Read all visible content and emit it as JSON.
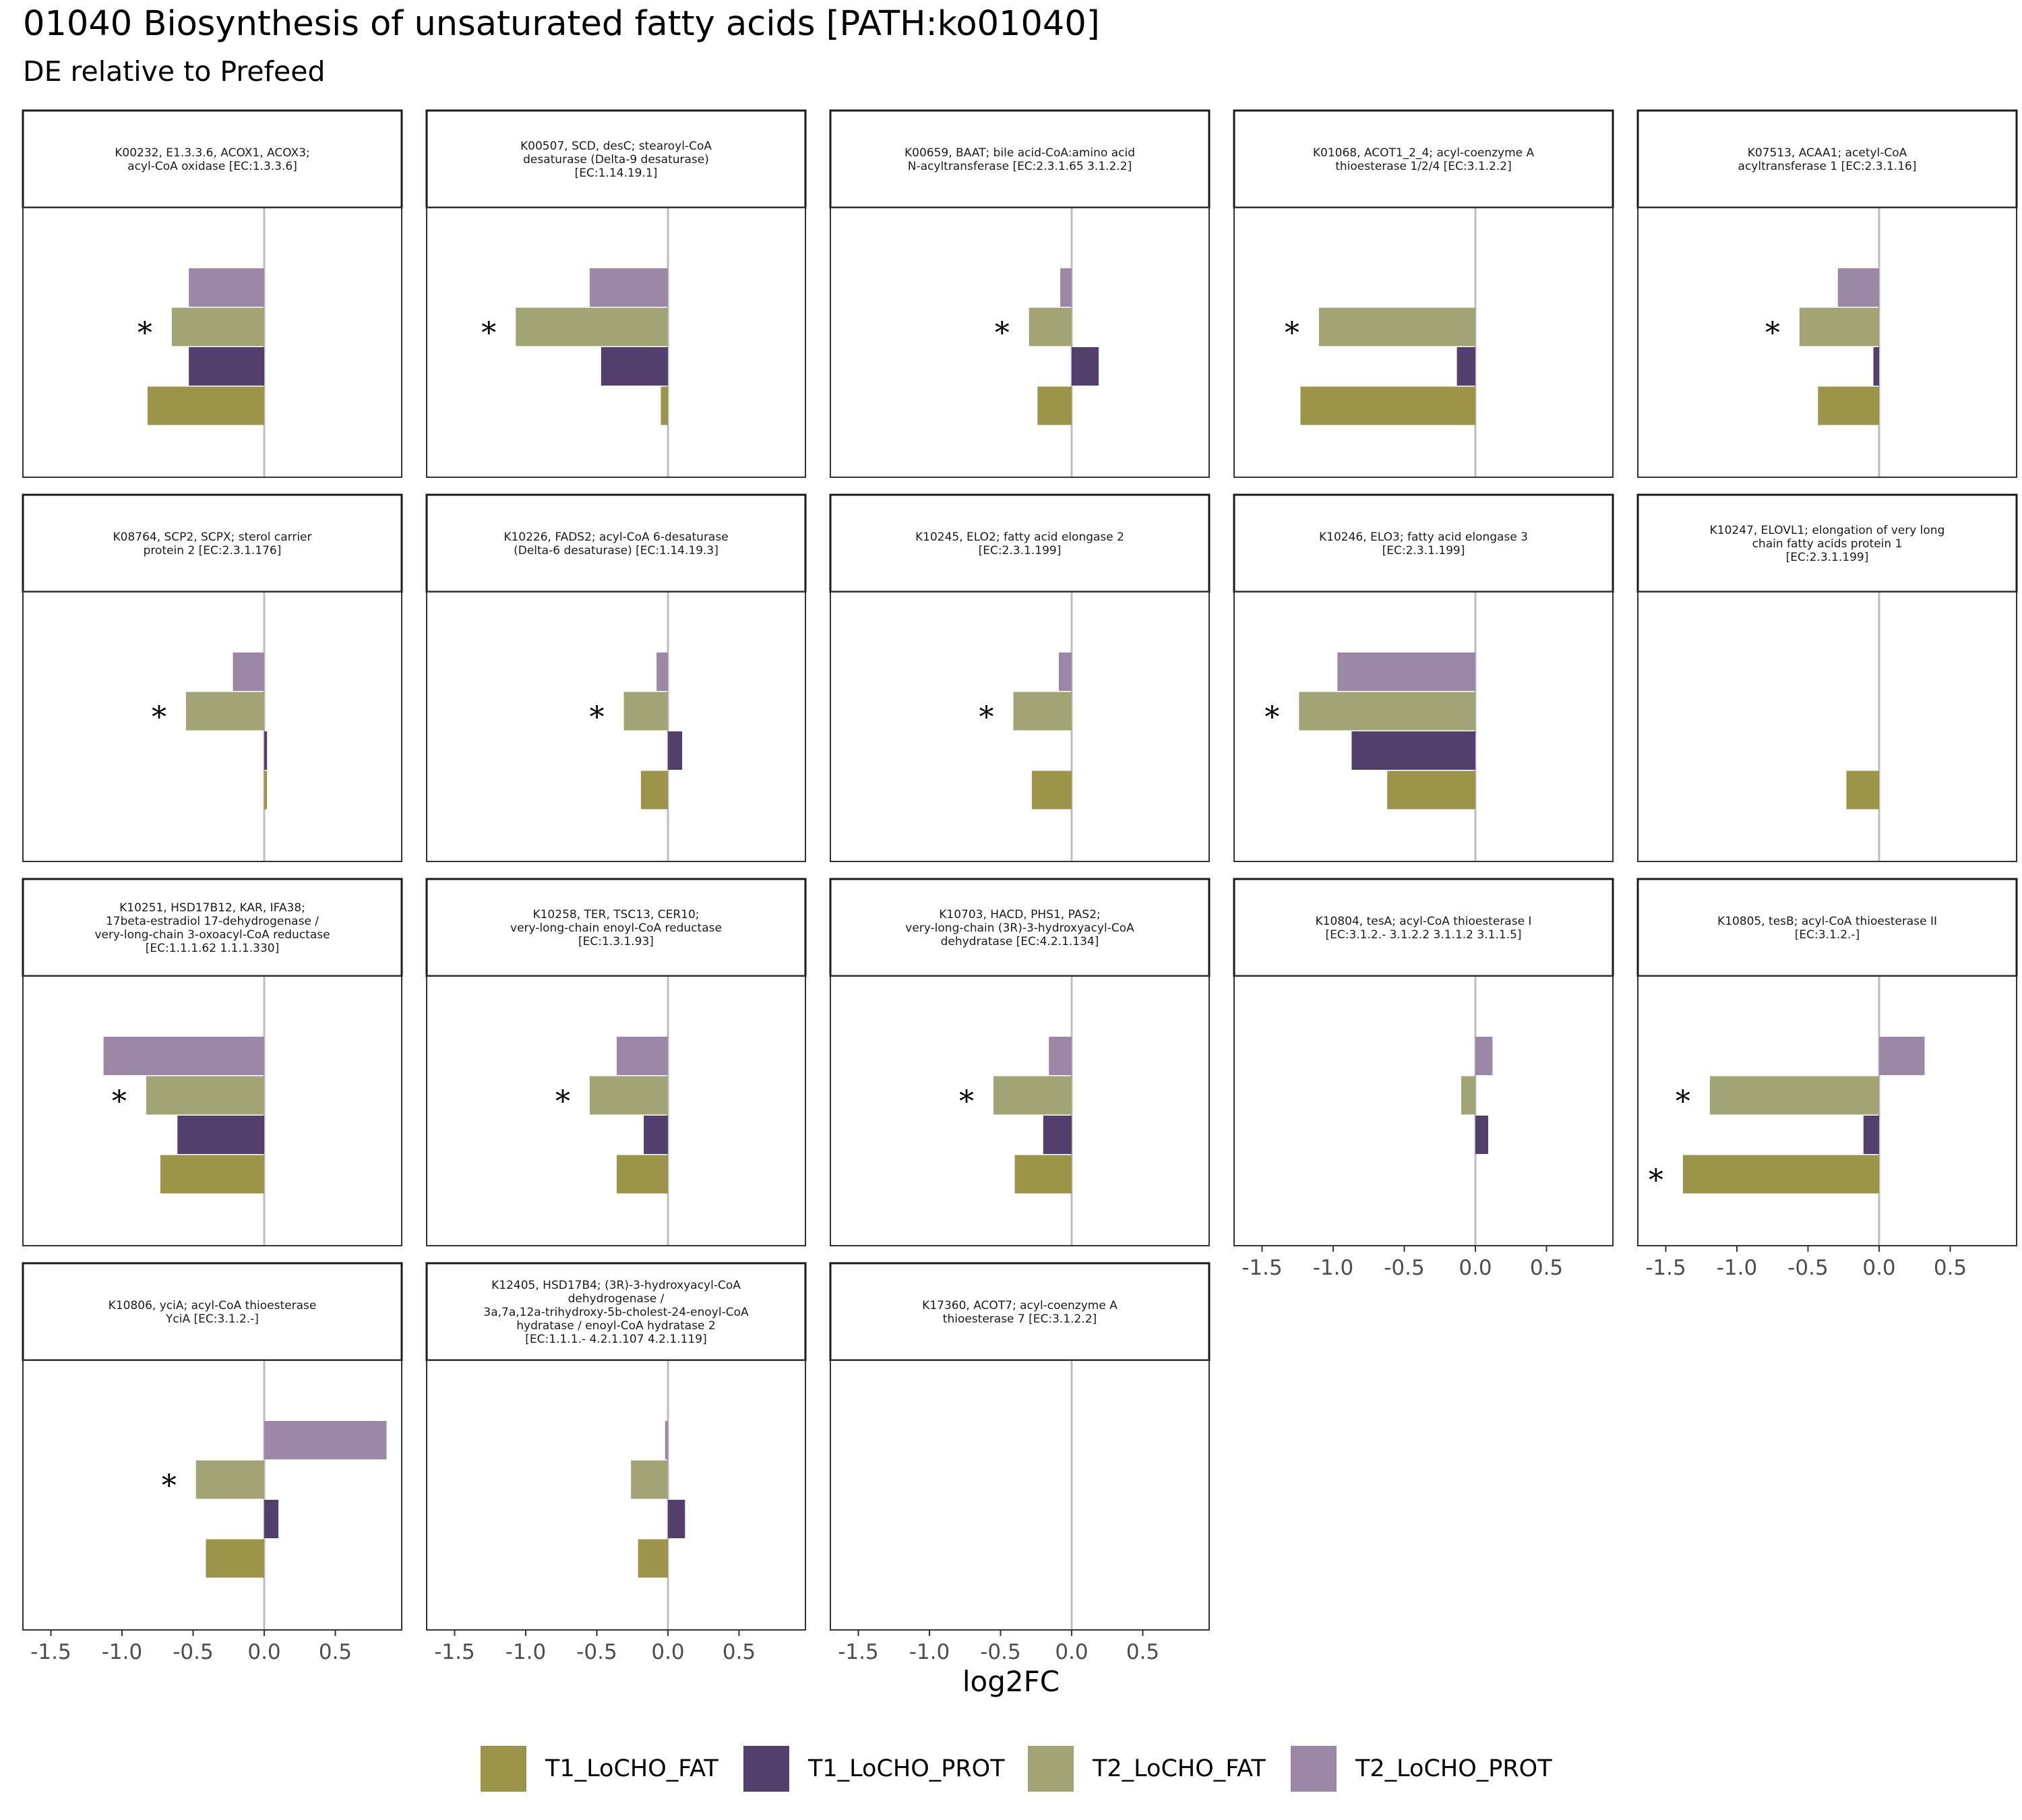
{
  "title": "01040 Biosynthesis of unsaturated fatty acids [PATH:ko01040]",
  "subtitle": "DE relative to Prefeed",
  "chart_data": {
    "type": "bar",
    "orientation": "horizontal",
    "xlabel": "log2FC",
    "xlim": [
      -1.7,
      0.95
    ],
    "x_ticks": [
      -1.5,
      -1.0,
      -0.5,
      0.0,
      0.5
    ],
    "x_tick_labels": [
      "-1.5",
      "-1.0",
      "-0.5",
      "0.0",
      "0.5"
    ],
    "series_order_top_to_bottom": [
      "T2_LoCHO_PROT",
      "T2_LoCHO_FAT",
      "T1_LoCHO_PROT",
      "T1_LoCHO_FAT"
    ],
    "colors": {
      "T1_LoCHO_FAT": "#9c9549",
      "T1_LoCHO_PROT": "#523f6b",
      "T2_LoCHO_FAT": "#a3a476",
      "T2_LoCHO_PROT": "#9b88a6"
    },
    "significance_marker": "*",
    "legend_position": "bottom",
    "panels": [
      {
        "label": [
          "K00232, E1.3.3.6, ACOX1, ACOX3;",
          "acyl-CoA oxidase [EC:1.3.3.6]"
        ],
        "values": {
          "T2_LoCHO_PROT": -0.53,
          "T2_LoCHO_FAT": -0.65,
          "T1_LoCHO_PROT": -0.53,
          "T1_LoCHO_FAT": -0.82
        },
        "significant": [
          "T2_LoCHO_FAT"
        ]
      },
      {
        "label": [
          "K00507, SCD, desC; stearoyl-CoA",
          "desaturase (Delta-9 desaturase)",
          "[EC:1.14.19.1]"
        ],
        "values": {
          "T2_LoCHO_PROT": -0.55,
          "T2_LoCHO_FAT": -1.07,
          "T1_LoCHO_PROT": -0.47,
          "T1_LoCHO_FAT": -0.05
        },
        "significant": [
          "T2_LoCHO_FAT"
        ]
      },
      {
        "label": [
          "K00659, BAAT; bile acid-CoA:amino acid",
          "N-acyltransferase [EC:2.3.1.65 3.1.2.2]"
        ],
        "values": {
          "T2_LoCHO_PROT": -0.08,
          "T2_LoCHO_FAT": -0.3,
          "T1_LoCHO_PROT": 0.19,
          "T1_LoCHO_FAT": -0.24
        },
        "significant": [
          "T2_LoCHO_FAT"
        ]
      },
      {
        "label": [
          "K01068, ACOT1_2_4; acyl-coenzyme A",
          "thioesterase 1/2/4 [EC:3.1.2.2]"
        ],
        "values": {
          "T2_LoCHO_PROT": 0.0,
          "T2_LoCHO_FAT": -1.1,
          "T1_LoCHO_PROT": -0.13,
          "T1_LoCHO_FAT": -1.23
        },
        "significant": [
          "T2_LoCHO_FAT"
        ]
      },
      {
        "label": [
          "K07513, ACAA1; acetyl-CoA",
          "acyltransferase 1 [EC:2.3.1.16]"
        ],
        "values": {
          "T2_LoCHO_PROT": -0.29,
          "T2_LoCHO_FAT": -0.56,
          "T1_LoCHO_PROT": -0.04,
          "T1_LoCHO_FAT": -0.43
        },
        "significant": [
          "T2_LoCHO_FAT"
        ]
      },
      {
        "label": [
          "K08764, SCP2, SCPX; sterol carrier",
          "protein 2 [EC:2.3.1.176]"
        ],
        "values": {
          "T2_LoCHO_PROT": -0.22,
          "T2_LoCHO_FAT": -0.55,
          "T1_LoCHO_PROT": 0.02,
          "T1_LoCHO_FAT": 0.02
        },
        "significant": [
          "T2_LoCHO_FAT"
        ]
      },
      {
        "label": [
          "K10226, FADS2; acyl-CoA 6-desaturase",
          "(Delta-6 desaturase) [EC:1.14.19.3]"
        ],
        "values": {
          "T2_LoCHO_PROT": -0.08,
          "T2_LoCHO_FAT": -0.31,
          "T1_LoCHO_PROT": 0.1,
          "T1_LoCHO_FAT": -0.19
        },
        "significant": [
          "T2_LoCHO_FAT"
        ]
      },
      {
        "label": [
          "K10245, ELO2; fatty acid elongase 2",
          "[EC:2.3.1.199]"
        ],
        "values": {
          "T2_LoCHO_PROT": -0.09,
          "T2_LoCHO_FAT": -0.41,
          "T1_LoCHO_PROT": 0.0,
          "T1_LoCHO_FAT": -0.28
        },
        "significant": [
          "T2_LoCHO_FAT"
        ]
      },
      {
        "label": [
          "K10246, ELO3; fatty acid elongase 3",
          "[EC:2.3.1.199]"
        ],
        "values": {
          "T2_LoCHO_PROT": -0.97,
          "T2_LoCHO_FAT": -1.24,
          "T1_LoCHO_PROT": -0.87,
          "T1_LoCHO_FAT": -0.62
        },
        "significant": [
          "T2_LoCHO_FAT"
        ]
      },
      {
        "label": [
          "K10247, ELOVL1; elongation of very long",
          "chain fatty acids protein 1",
          "[EC:2.3.1.199]"
        ],
        "values": {
          "T2_LoCHO_PROT": 0.0,
          "T2_LoCHO_FAT": 0.0,
          "T1_LoCHO_PROT": 0.0,
          "T1_LoCHO_FAT": -0.23
        },
        "significant": []
      },
      {
        "label": [
          "K10251, HSD17B12, KAR, IFA38;",
          "17beta-estradiol 17-dehydrogenase /",
          "very-long-chain 3-oxoacyl-CoA reductase",
          "[EC:1.1.1.62 1.1.1.330]"
        ],
        "values": {
          "T2_LoCHO_PROT": -1.13,
          "T2_LoCHO_FAT": -0.83,
          "T1_LoCHO_PROT": -0.61,
          "T1_LoCHO_FAT": -0.73
        },
        "significant": [
          "T2_LoCHO_FAT"
        ]
      },
      {
        "label": [
          "K10258, TER, TSC13, CER10;",
          "very-long-chain enoyl-CoA reductase",
          "[EC:1.3.1.93]"
        ],
        "values": {
          "T2_LoCHO_PROT": -0.36,
          "T2_LoCHO_FAT": -0.55,
          "T1_LoCHO_PROT": -0.17,
          "T1_LoCHO_FAT": -0.36
        },
        "significant": [
          "T2_LoCHO_FAT"
        ]
      },
      {
        "label": [
          "K10703, HACD, PHS1, PAS2;",
          "very-long-chain (3R)-3-hydroxyacyl-CoA",
          "dehydratase [EC:4.2.1.134]"
        ],
        "values": {
          "T2_LoCHO_PROT": -0.16,
          "T2_LoCHO_FAT": -0.55,
          "T1_LoCHO_PROT": -0.2,
          "T1_LoCHO_FAT": -0.4
        },
        "significant": [
          "T2_LoCHO_FAT"
        ]
      },
      {
        "label": [
          "K10804, tesA; acyl-CoA thioesterase I",
          "[EC:3.1.2.- 3.1.2.2 3.1.1.2 3.1.1.5]"
        ],
        "values": {
          "T2_LoCHO_PROT": 0.12,
          "T2_LoCHO_FAT": -0.1,
          "T1_LoCHO_PROT": 0.09,
          "T1_LoCHO_FAT": 0.0
        },
        "significant": []
      },
      {
        "label": [
          "K10805, tesB; acyl-CoA thioesterase II",
          "[EC:3.1.2.-]"
        ],
        "values": {
          "T2_LoCHO_PROT": 0.32,
          "T2_LoCHO_FAT": -1.19,
          "T1_LoCHO_PROT": -0.11,
          "T1_LoCHO_FAT": -1.38
        },
        "significant": [
          "T2_LoCHO_FAT",
          "T1_LoCHO_FAT"
        ]
      },
      {
        "label": [
          "K10806, yciA; acyl-CoA thioesterase",
          "YciA [EC:3.1.2.-]"
        ],
        "values": {
          "T2_LoCHO_PROT": 0.86,
          "T2_LoCHO_FAT": -0.48,
          "T1_LoCHO_PROT": 0.1,
          "T1_LoCHO_FAT": -0.41
        },
        "significant": [
          "T2_LoCHO_FAT"
        ]
      },
      {
        "label": [
          "K12405, HSD17B4; (3R)-3-hydroxyacyl-CoA",
          "dehydrogenase /",
          "3a,7a,12a-trihydroxy-5b-cholest-24-enoyl-CoA",
          "hydratase / enoyl-CoA hydratase 2",
          "[EC:1.1.1.- 4.2.1.107 4.2.1.119]"
        ],
        "values": {
          "T2_LoCHO_PROT": -0.02,
          "T2_LoCHO_FAT": -0.26,
          "T1_LoCHO_PROT": 0.12,
          "T1_LoCHO_FAT": -0.21
        },
        "significant": []
      },
      {
        "label": [
          "K17360, ACOT7; acyl-coenzyme A",
          "thioesterase 7 [EC:3.1.2.2]"
        ],
        "values": {
          "T2_LoCHO_PROT": 0.0,
          "T2_LoCHO_FAT": 0.0,
          "T1_LoCHO_PROT": 0.0,
          "T1_LoCHO_FAT": 0.0
        },
        "significant": []
      }
    ],
    "legend": [
      "T1_LoCHO_FAT",
      "T1_LoCHO_PROT",
      "T2_LoCHO_FAT",
      "T2_LoCHO_PROT"
    ]
  }
}
